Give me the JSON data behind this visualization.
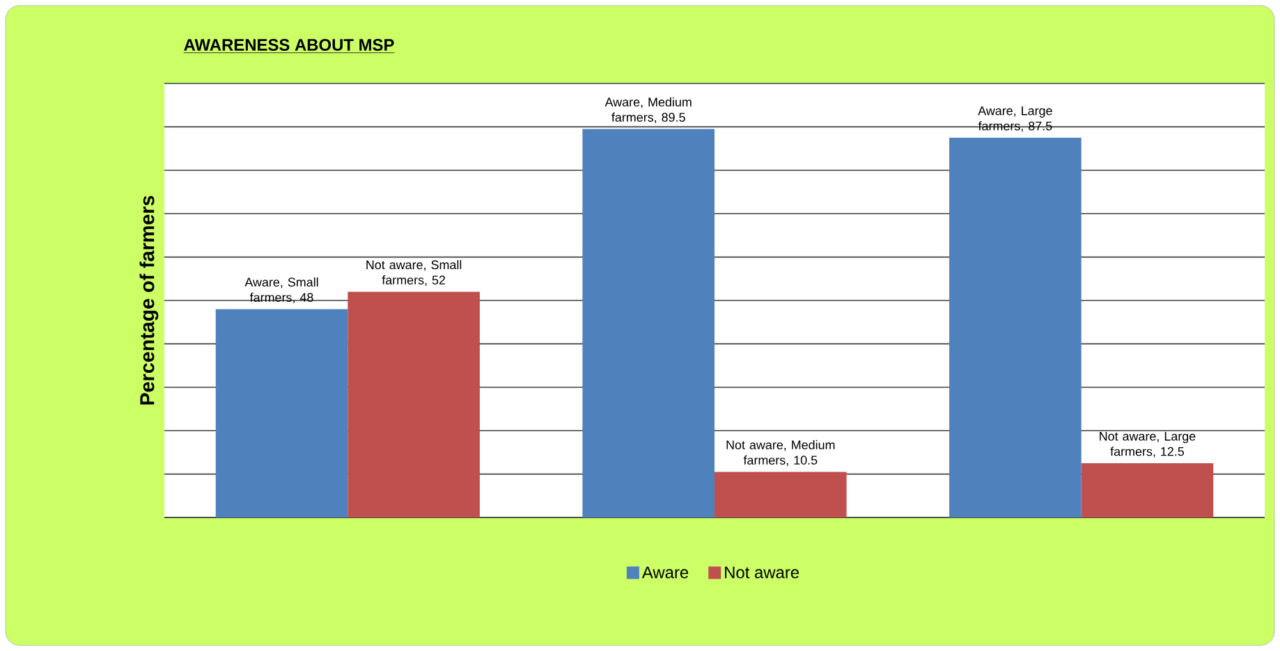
{
  "chart_data": {
    "type": "bar",
    "title": "AWARENESS ABOUT MSP",
    "ylabel": "Percentage of farmers",
    "categories": [
      null,
      null,
      null
    ],
    "series": [
      {
        "name": "Aware",
        "color": "#4f81bd",
        "values": [
          48,
          89.5,
          87.5
        ],
        "value_labels": [
          "Aware, Small farmers, 48",
          "Aware, Medium farmers, 89.5",
          "Aware, Large farmers, 87.5"
        ]
      },
      {
        "name": "Not aware",
        "color": "#c0504d",
        "values": [
          52,
          10.5,
          12.5
        ],
        "value_labels": [
          "Not aware, Small farmers, 52",
          "Not aware, Medium farmers, 10.5",
          "Not aware, Large farmers, 12.5"
        ]
      }
    ],
    "ylim": [
      0,
      100
    ],
    "yticks": [
      {
        "value": 0,
        "label": null
      },
      {
        "value": 10,
        "label": null
      },
      {
        "value": 20,
        "label": null
      },
      {
        "value": 30,
        "label": null
      },
      {
        "value": 40,
        "label": null
      },
      {
        "value": 50,
        "label": null
      },
      {
        "value": 60,
        "label": null
      },
      {
        "value": 70,
        "label": null
      },
      {
        "value": 80,
        "label": null
      },
      {
        "value": 90,
        "label": null
      },
      {
        "value": 100,
        "label": null
      }
    ],
    "grid": "y",
    "legend": "bottom"
  }
}
